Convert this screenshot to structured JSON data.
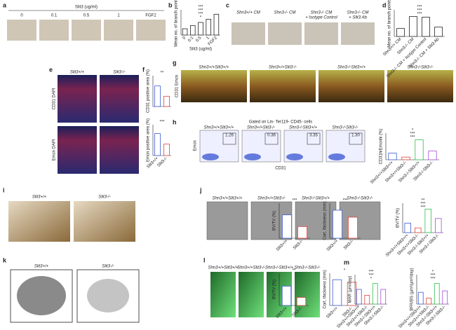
{
  "letters": [
    "a",
    "b",
    "c",
    "d",
    "e",
    "f",
    "g",
    "h",
    "i",
    "j",
    "k",
    "l",
    "m"
  ],
  "a": {
    "title": "Slit3 (ug/ml)",
    "conditions": [
      "0",
      "0.1",
      "0.5",
      "1",
      "FGF2"
    ]
  },
  "c": {
    "conditions": [
      [
        "Shn3+/+ CM"
      ],
      [
        "Shn3-/- CM"
      ],
      [
        "Shn3-/- CM",
        "+ Isotype Control"
      ],
      [
        "Shn3-/- CM",
        "+ Slit3 Ab"
      ]
    ]
  },
  "e": {
    "genotypes": [
      "Slit3+/+",
      "Slit3-/-"
    ],
    "stains": [
      "CD31 DAPI",
      "Emcn DAPI"
    ]
  },
  "g": {
    "genotypes": [
      "Shn3+/+Slit3+/+",
      "Shn3+/+Slit3-/-",
      "Shn3-/-Slit3+/+",
      "Shn3-/-Slit3-/-"
    ],
    "stain": "CD31 Emcn"
  },
  "h": {
    "gate": "Gated on Lin- Ter119- CD45- cells",
    "genotypes": [
      "Shn3+/+Slit3+/+",
      "Shn3+/+Slit3-/-",
      "Shn3-/-Slit3+/+",
      "Shn3-/-Slit3-/-"
    ],
    "gate_values": [
      "1.26",
      "0.36",
      "3.35",
      "1.30"
    ],
    "x_axis": "CD31",
    "y_axis": "Emcn"
  },
  "i": {
    "genotypes": [
      "Slit3+/+",
      "Slit3-/-"
    ]
  },
  "j": {
    "genotypes": [
      "Shn3+/+Slit3+/+",
      "Shn3+/+Slit3-/-",
      "Shn3-/-Slit3+/+",
      "Shn3-/-Slit3-/-"
    ]
  },
  "k": {
    "genotypes": [
      "Slit3+/+",
      "Slit3-/-"
    ]
  },
  "l": {
    "genotypes": [
      "Shn3+/+Slit3+/+",
      "Shn3+/+Slit3-/-",
      "Shn3-/-Slit3+/+",
      "Shn3-/-Slit3-/-"
    ]
  },
  "charts": [
    {
      "type": "bar",
      "ylabel": "Mean no. of branch points",
      "xlabel": "Slit3 (ug/ml)",
      "categories": [
        "0",
        "0.1",
        "0.5",
        "1",
        "FGF2"
      ],
      "values": [
        10,
        15,
        20,
        25,
        33
      ],
      "ylim": [
        0,
        40
      ],
      "colors": [
        "#222",
        "#222",
        "#222",
        "#222",
        "#222"
      ],
      "significance": [
        "***",
        "***",
        "***",
        "*"
      ]
    },
    {
      "type": "bar",
      "ylabel": "Mean no. of branch points",
      "categories": [
        "Shn3+/+ CM",
        "Shn3-/- CM",
        "Shn3-/- CM + Isotype Control",
        "Shn3-/- CM + Slit3 Ab"
      ],
      "values": [
        12,
        30,
        29,
        14
      ],
      "ylim": [
        0,
        40
      ],
      "colors": [
        "#222",
        "#222",
        "#222",
        "#222"
      ],
      "significance": [
        "***",
        "***",
        "***"
      ]
    },
    {
      "type": "bar",
      "ylabel": "CD31 positive area (%)",
      "values": [
        30,
        15
      ],
      "ylim": [
        0,
        45
      ],
      "colors": [
        "#3b5bd6",
        "#e0413a"
      ],
      "significance": [
        "**"
      ]
    },
    {
      "type": "bar",
      "ylabel": "Emcn positive area (%)",
      "categories": [
        "Slit3+/+",
        "Slit3-/-"
      ],
      "values": [
        25,
        13
      ],
      "ylim": [
        0,
        35
      ],
      "colors": [
        "#3b5bd6",
        "#e0413a"
      ],
      "significance": [
        "***"
      ]
    },
    {
      "type": "bar",
      "ylabel": "CD31hiEmcnhi (%)",
      "categories": [
        "Shn3+/+Slit3+/+",
        "Shn3+/+Slit3-/-",
        "Shn3-/-Slit3+/+",
        "Shn3-/-Slit3-/-"
      ],
      "values": [
        1.0,
        0.4,
        3.0,
        1.3
      ],
      "ylim": [
        0,
        4
      ],
      "colors": [
        "#3b5bd6",
        "#e0413a",
        "#2fbf4a",
        "#a64ad6"
      ],
      "significance": [
        "*",
        "***",
        "***"
      ]
    },
    {
      "type": "bar",
      "ylabel": "BV/TV (%)",
      "categories": [
        "Slit3+/+",
        "Slit3-/-"
      ],
      "values": [
        10,
        5
      ],
      "ylim": [
        0,
        15
      ],
      "colors": [
        "#3b5bd6",
        "#e0413a"
      ],
      "significance": [
        "***"
      ]
    },
    {
      "type": "bar",
      "ylabel": "Cort. thickness (mm)",
      "categories": [
        "Slit3+/+",
        "Slit3-/-"
      ],
      "values": [
        0.2,
        0.15
      ],
      "ylim": [
        0,
        0.25
      ],
      "colors": [
        "#3b5bd6",
        "#e0413a"
      ],
      "significance": [
        "***"
      ]
    },
    {
      "type": "bar",
      "ylabel": "BV/TV (%)",
      "categories": [
        "Shn3+/+Slit3+/+",
        "Shn3+/+Slit3-/-",
        "Shn3-/-Slit3+/+",
        "Shn3-/-Slit3-/-"
      ],
      "values": [
        8,
        4,
        20,
        12
      ],
      "ylim": [
        0,
        25
      ],
      "colors": [
        "#3b5bd6",
        "#e0413a",
        "#2fbf4a",
        "#a64ad6"
      ],
      "significance": [
        "**",
        "***",
        "***"
      ]
    },
    {
      "type": "bar",
      "ylabel": "BV/TV (%)",
      "categories": [
        "Slit3+/+",
        "Slit3-/-"
      ],
      "values": [
        12,
        5
      ],
      "ylim": [
        0,
        20
      ],
      "colors": [
        "#3b5bd6",
        "#e0413a"
      ],
      "significance": [
        "**"
      ]
    },
    {
      "type": "bar",
      "ylabel": "Cort. thickness (mm)",
      "categories": [
        "Slit3+/+",
        "Slit3-/-"
      ],
      "values": [
        0.2,
        0.18
      ],
      "ylim": [
        0,
        0.25
      ],
      "colors": [
        "#3b5bd6",
        "#e0413a"
      ],
      "significance": [
        "*"
      ]
    },
    {
      "type": "bar",
      "ylabel": "MAR (µm/day)",
      "categories": [
        "Shn3+/+Slit3+/+",
        "Shn3+/+Slit3-/-",
        "Shn3-/-Slit3+/+",
        "Shn3-/-Slit3-/-"
      ],
      "values": [
        2.5,
        1.5,
        3.5,
        2.5
      ],
      "ylim": [
        0,
        5
      ],
      "colors": [
        "#3b5bd6",
        "#e0413a",
        "#2fbf4a",
        "#a64ad6"
      ],
      "significance": [
        "***",
        "***",
        "*"
      ]
    },
    {
      "type": "bar",
      "ylabel": "BFR/BS (µm³/µm²/day)",
      "categories": [
        "Shn3+/+Slit3+/+",
        "Shn3+/+Slit3-/-",
        "Shn3-/-Slit3+/+",
        "Shn3-/-Slit3-/-"
      ],
      "values": [
        0.8,
        0.4,
        1.4,
        0.9
      ],
      "ylim": [
        0,
        2
      ],
      "colors": [
        "#3b5bd6",
        "#e0413a",
        "#2fbf4a",
        "#a64ad6"
      ],
      "significance": [
        "*",
        "***",
        "***"
      ]
    }
  ]
}
